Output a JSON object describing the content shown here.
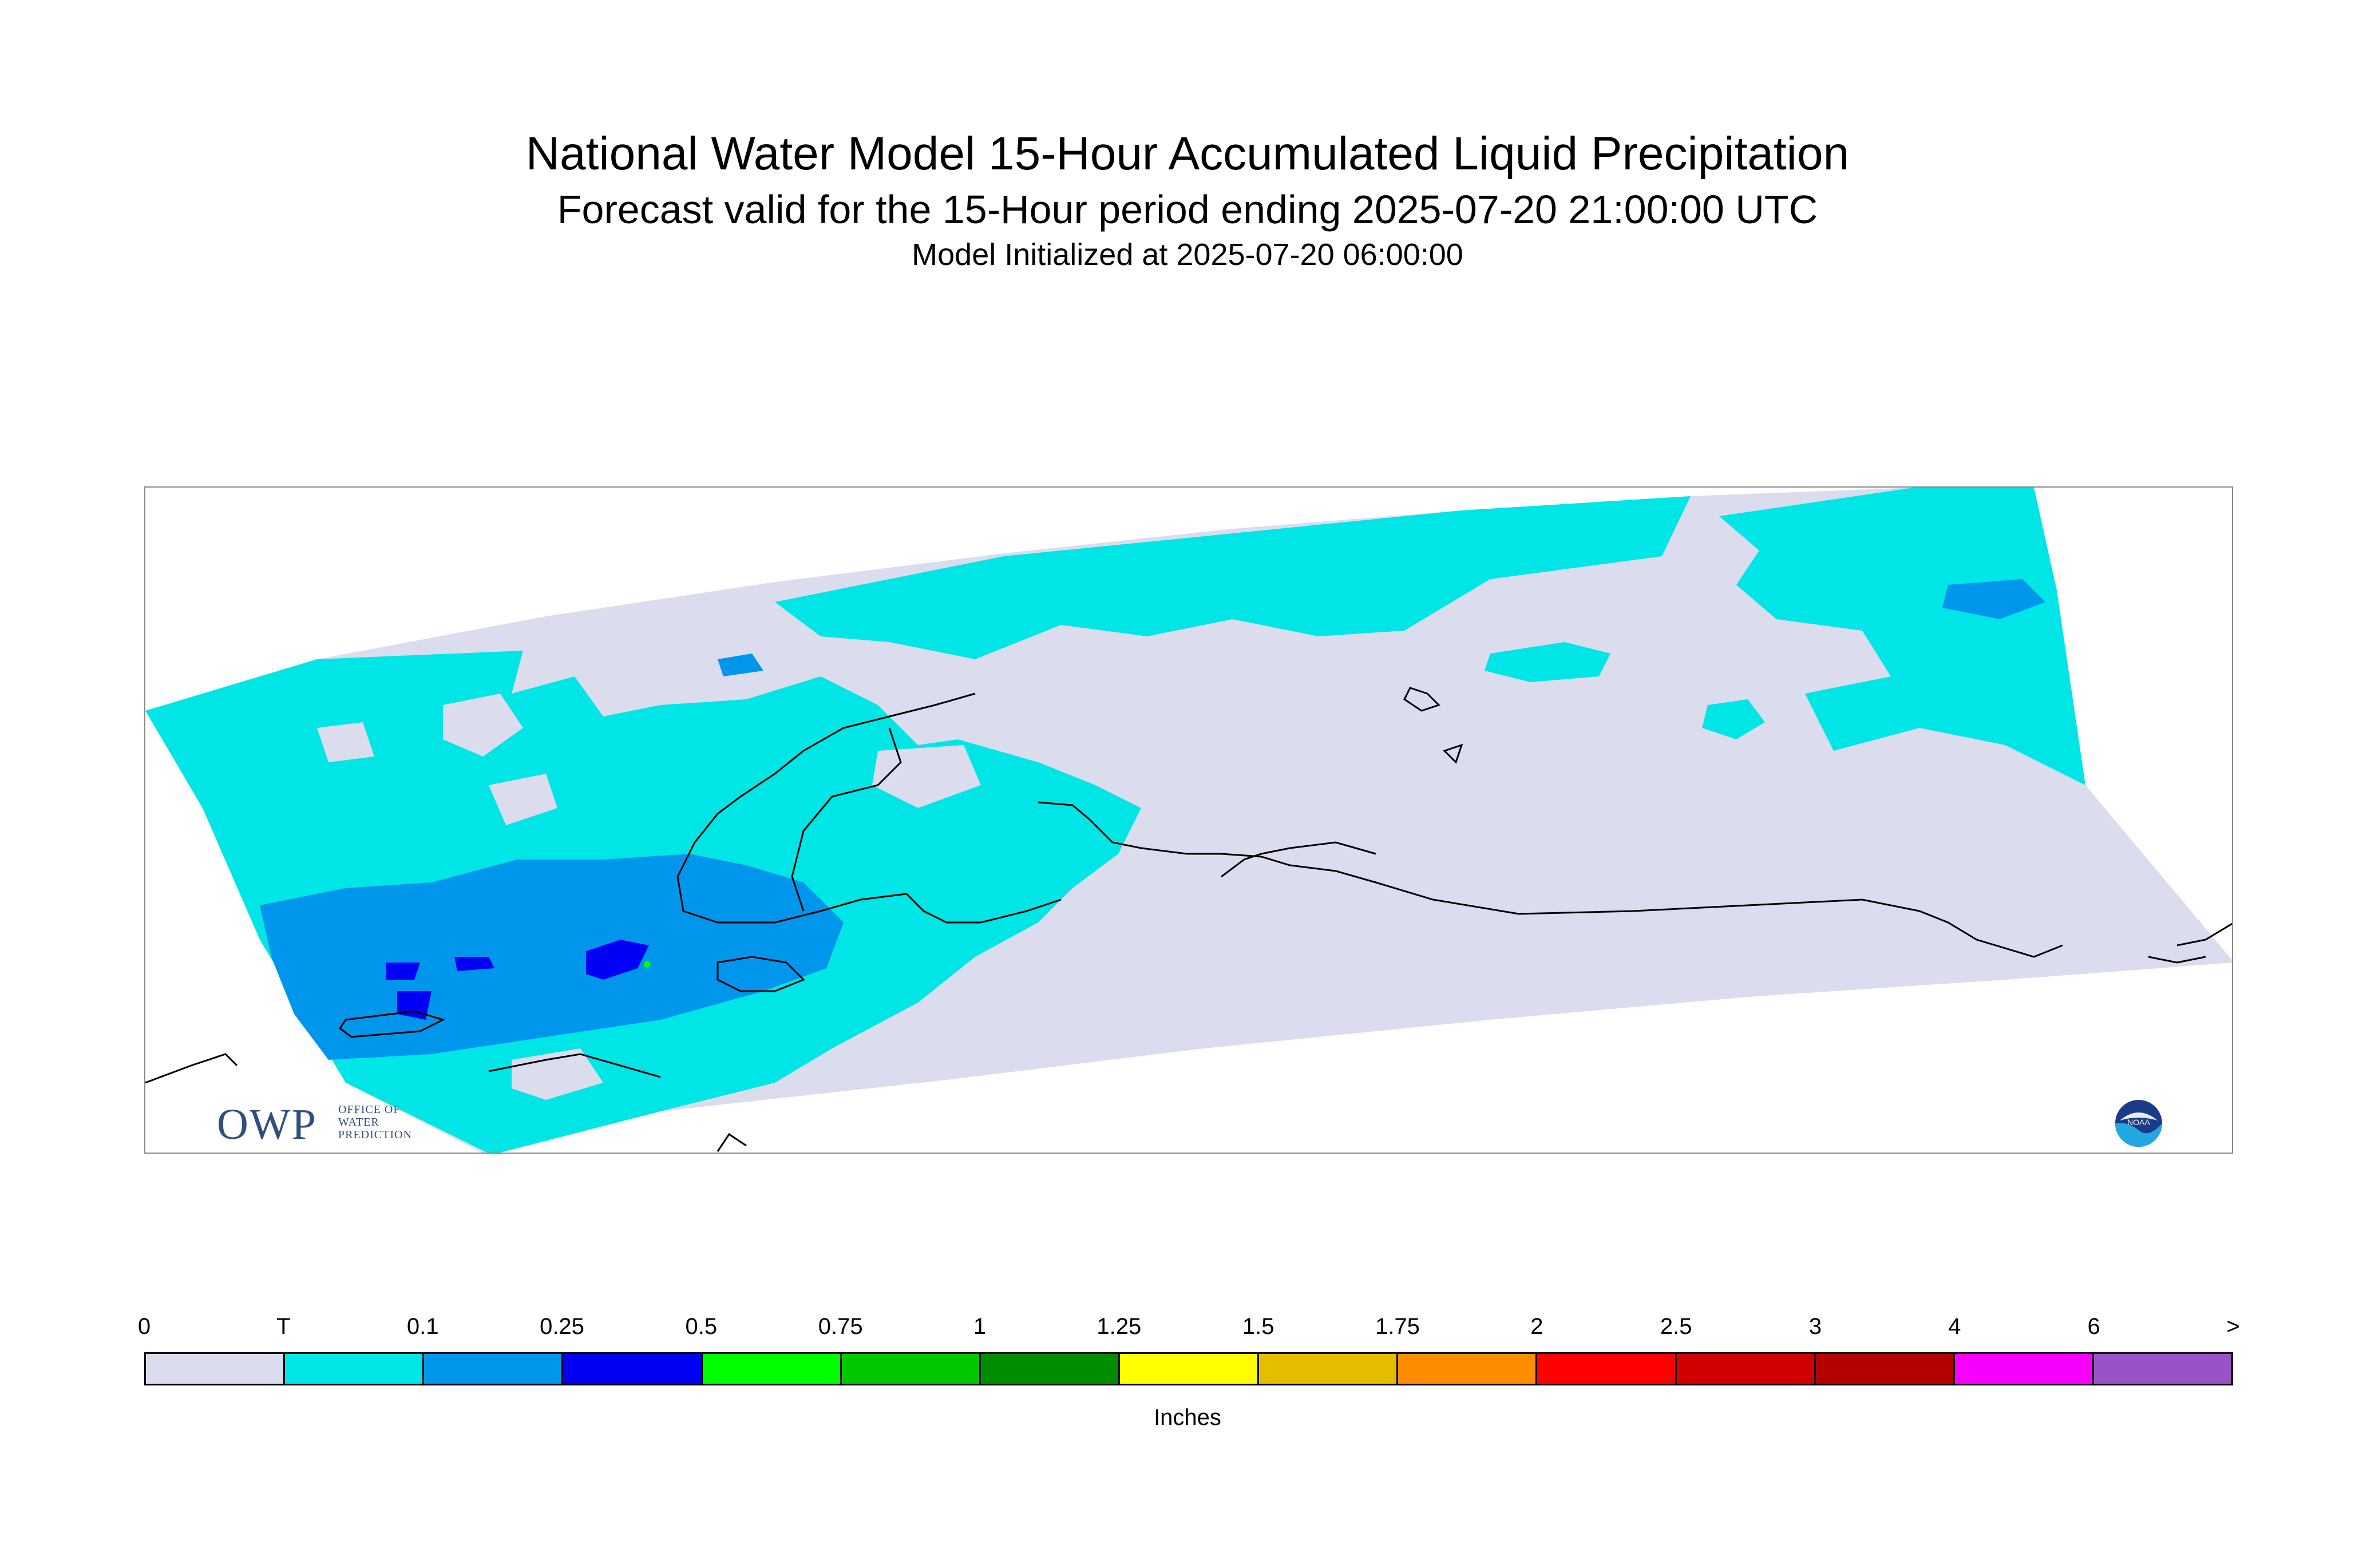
{
  "title": "National Water Model 15-Hour Accumulated Liquid Precipitation",
  "subtitle": "Forecast valid for the 15-Hour period ending 2025-07-20 21:00:00 UTC",
  "init_line": "Model Initialized at 2025-07-20 06:00:00",
  "logos": {
    "owp": {
      "big": "OWP",
      "line1": "OFFICE OF",
      "line2": "WATER",
      "line3": "PREDICTION"
    },
    "noaa": "NOAA"
  },
  "legend": {
    "labels": [
      "0",
      "T",
      "0.1",
      "0.25",
      "0.5",
      "0.75",
      "1",
      "1.25",
      "1.5",
      "1.75",
      "2",
      "2.5",
      "3",
      "4",
      "6",
      ">"
    ],
    "colors": [
      "#dcdcef",
      "#00e5e5",
      "#0096ec",
      "#0000f4",
      "#00fe00",
      "#00c800",
      "#008c00",
      "#fefe00",
      "#e5bd00",
      "#fe8c00",
      "#fe0000",
      "#d30000",
      "#b40000",
      "#f800fd",
      "#9854c6"
    ],
    "units": "Inches"
  },
  "map_colors": {
    "background_field": "#dcdcef",
    "trace": "#00e5e5",
    "light": "#0096ec",
    "heavy": "#0000f4",
    "green": "#00fe00",
    "coast": "#000000"
  }
}
